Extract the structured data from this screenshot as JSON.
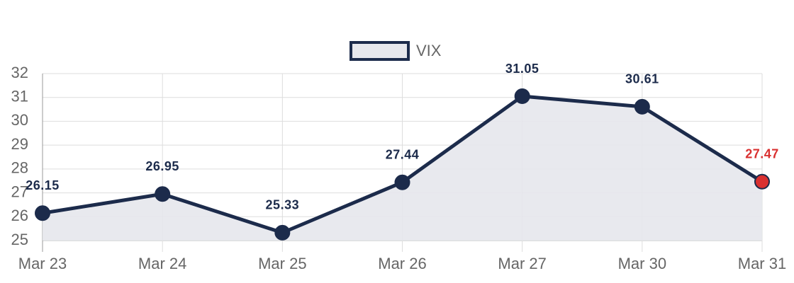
{
  "chart_data": {
    "type": "line",
    "categories": [
      "Mar 23",
      "Mar 24",
      "Mar 25",
      "Mar 26",
      "Mar 27",
      "Mar 30",
      "Mar 31"
    ],
    "series": [
      {
        "name": "VIX",
        "color": "#1c2b4b",
        "fill": "#e6e7ec",
        "values": [
          26.15,
          26.95,
          25.33,
          27.44,
          31.05,
          30.61,
          27.47
        ],
        "point_colors": [
          "#1c2b4b",
          "#1c2b4b",
          "#1c2b4b",
          "#1c2b4b",
          "#1c2b4b",
          "#1c2b4b",
          "#d93030"
        ]
      }
    ],
    "ylim": [
      25,
      32
    ],
    "yticks": [
      25,
      26,
      27,
      28,
      29,
      30,
      31,
      32
    ],
    "grid": true,
    "legend": "top"
  }
}
